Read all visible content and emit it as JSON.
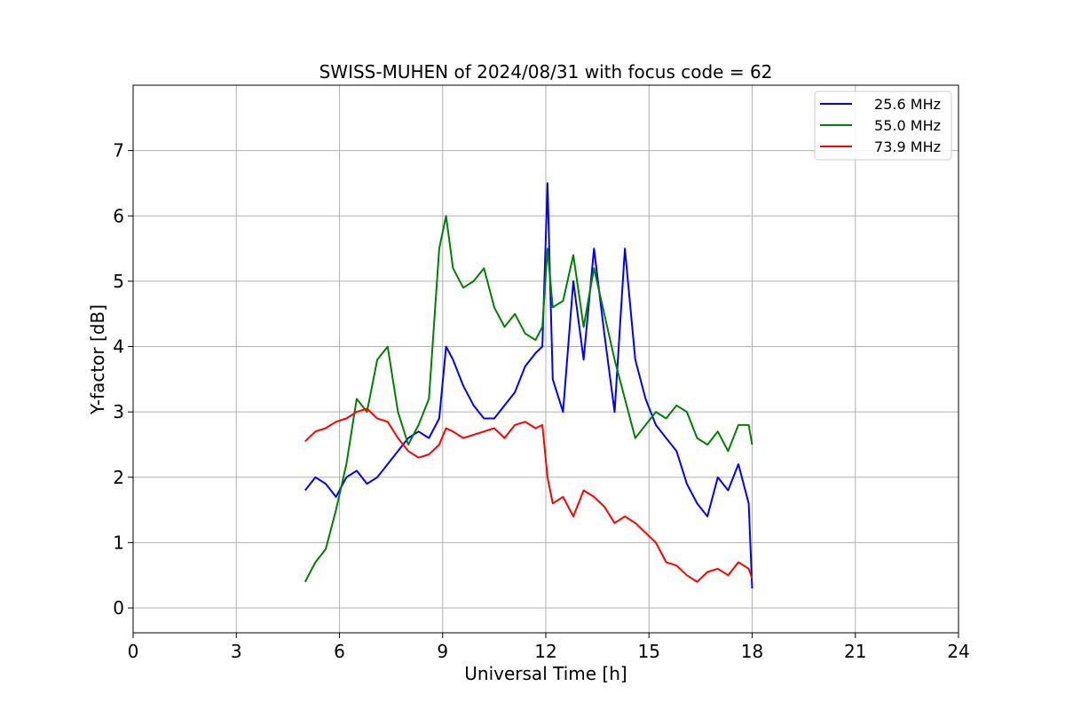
{
  "chart_data": {
    "type": "line",
    "title": "SWISS-MUHEN of 2024/08/31 with focus code = 62",
    "xlabel": "Universal Time [h]",
    "ylabel": "Y-factor [dB]",
    "xlim": [
      0,
      24
    ],
    "ylim": [
      -0.38,
      8.0
    ],
    "xticks": [
      0,
      3,
      6,
      9,
      12,
      15,
      18,
      21,
      24
    ],
    "yticks": [
      0,
      1,
      2,
      3,
      4,
      5,
      6,
      7
    ],
    "grid": true,
    "legend_position": "top-right",
    "series": [
      {
        "name": "25.6 MHz",
        "color": "#0000ff",
        "x": [
          5.0,
          5.3,
          5.6,
          5.9,
          6.2,
          6.5,
          6.8,
          7.1,
          7.4,
          7.7,
          8.0,
          8.3,
          8.6,
          8.9,
          9.1,
          9.3,
          9.6,
          9.9,
          10.2,
          10.5,
          10.8,
          11.1,
          11.4,
          11.7,
          11.9,
          12.05,
          12.2,
          12.5,
          12.8,
          13.1,
          13.4,
          13.7,
          14.0,
          14.3,
          14.6,
          14.9,
          15.2,
          15.5,
          15.8,
          16.1,
          16.4,
          16.7,
          17.0,
          17.3,
          17.6,
          17.9,
          18.0
        ],
        "y": [
          1.8,
          2.0,
          1.9,
          1.7,
          2.0,
          2.1,
          1.9,
          2.0,
          2.2,
          2.4,
          2.6,
          2.7,
          2.6,
          2.9,
          4.0,
          3.8,
          3.4,
          3.1,
          2.9,
          2.9,
          3.1,
          3.3,
          3.7,
          3.9,
          4.0,
          6.5,
          3.5,
          3.0,
          5.0,
          3.8,
          5.5,
          4.2,
          3.0,
          5.5,
          3.8,
          3.2,
          2.8,
          2.6,
          2.4,
          1.9,
          1.6,
          1.4,
          2.0,
          1.8,
          2.2,
          1.6,
          0.3
        ]
      },
      {
        "name": "55.0 MHz",
        "color": "#008000",
        "x": [
          5.0,
          5.3,
          5.6,
          5.9,
          6.2,
          6.5,
          6.8,
          7.1,
          7.4,
          7.7,
          8.0,
          8.3,
          8.6,
          8.9,
          9.1,
          9.3,
          9.6,
          9.9,
          10.2,
          10.5,
          10.8,
          11.1,
          11.4,
          11.7,
          11.9,
          12.05,
          12.2,
          12.5,
          12.8,
          13.1,
          13.4,
          13.7,
          14.0,
          14.3,
          14.6,
          14.9,
          15.2,
          15.5,
          15.8,
          16.1,
          16.4,
          16.7,
          17.0,
          17.3,
          17.6,
          17.9,
          18.0
        ],
        "y": [
          0.4,
          0.7,
          0.9,
          1.5,
          2.2,
          3.2,
          3.0,
          3.8,
          4.0,
          3.0,
          2.5,
          2.8,
          3.2,
          5.5,
          6.0,
          5.2,
          4.9,
          5.0,
          5.2,
          4.6,
          4.3,
          4.5,
          4.2,
          4.1,
          4.3,
          5.5,
          4.6,
          4.7,
          5.4,
          4.3,
          5.2,
          4.5,
          3.8,
          3.2,
          2.6,
          2.8,
          3.0,
          2.9,
          3.1,
          3.0,
          2.6,
          2.5,
          2.7,
          2.4,
          2.8,
          2.8,
          2.5
        ]
      },
      {
        "name": "73.9 MHz",
        "color": "#ff0000",
        "x": [
          5.0,
          5.3,
          5.6,
          5.9,
          6.2,
          6.5,
          6.8,
          7.1,
          7.4,
          7.7,
          8.0,
          8.3,
          8.6,
          8.9,
          9.1,
          9.3,
          9.6,
          9.9,
          10.2,
          10.5,
          10.8,
          11.1,
          11.4,
          11.7,
          11.9,
          12.05,
          12.2,
          12.5,
          12.8,
          13.1,
          13.4,
          13.7,
          14.0,
          14.3,
          14.6,
          14.9,
          15.2,
          15.5,
          15.8,
          16.1,
          16.4,
          16.7,
          17.0,
          17.3,
          17.6,
          17.9,
          18.0
        ],
        "y": [
          2.55,
          2.7,
          2.75,
          2.85,
          2.9,
          3.0,
          3.05,
          2.9,
          2.85,
          2.6,
          2.4,
          2.3,
          2.35,
          2.5,
          2.75,
          2.7,
          2.6,
          2.65,
          2.7,
          2.75,
          2.6,
          2.8,
          2.85,
          2.75,
          2.8,
          2.0,
          1.6,
          1.7,
          1.4,
          1.8,
          1.7,
          1.55,
          1.3,
          1.4,
          1.3,
          1.15,
          1.0,
          0.7,
          0.65,
          0.5,
          0.4,
          0.55,
          0.6,
          0.5,
          0.7,
          0.6,
          0.45
        ]
      }
    ]
  }
}
